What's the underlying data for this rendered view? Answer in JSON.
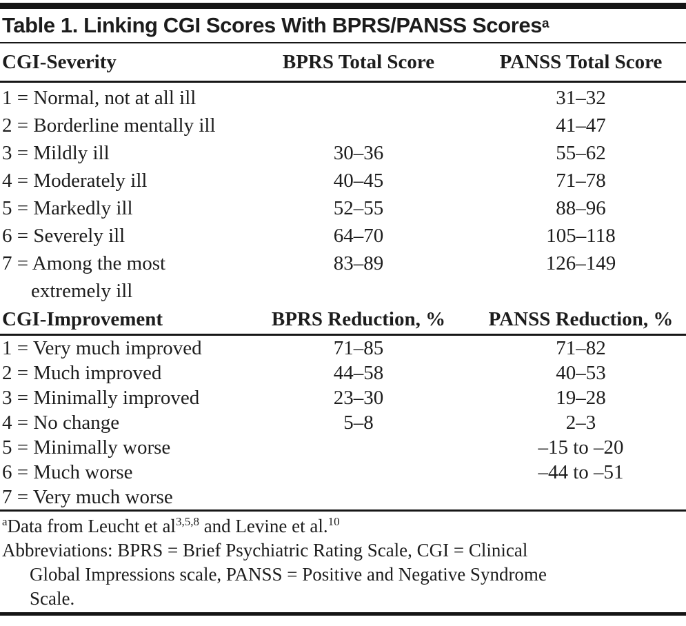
{
  "title": {
    "text": "Table 1. Linking CGI Scores With BPRS/PANSS Scores",
    "superscript": "a"
  },
  "severity_section": {
    "columns": [
      "CGI-Severity",
      "BPRS Total Score",
      "PANSS Total Score"
    ],
    "rows": [
      {
        "label": "1 = Normal, not at all ill",
        "bprs": "",
        "panss": "31–32"
      },
      {
        "label": "2 = Borderline mentally ill",
        "bprs": "",
        "panss": "41–47"
      },
      {
        "label": "3 = Mildly ill",
        "bprs": "30–36",
        "panss": "55–62"
      },
      {
        "label": "4 = Moderately ill",
        "bprs": "40–45",
        "panss": "71–78"
      },
      {
        "label": "5 = Markedly ill",
        "bprs": "52–55",
        "panss": "88–96"
      },
      {
        "label": "6 = Severely ill",
        "bprs": "64–70",
        "panss": "105–118"
      },
      {
        "label": "7 = Among the most",
        "label_line2": "extremely ill",
        "bprs": "83–89",
        "panss": "126–149"
      }
    ]
  },
  "improvement_section": {
    "columns": [
      "CGI-Improvement",
      "BPRS Reduction, %",
      "PANSS Reduction, %"
    ],
    "rows": [
      {
        "label": "1 = Very much improved",
        "bprs": "71–85",
        "panss": "71–82"
      },
      {
        "label": "2 = Much improved",
        "bprs": "44–58",
        "panss": "40–53"
      },
      {
        "label": "3 = Minimally improved",
        "bprs": "23–30",
        "panss": "19–28"
      },
      {
        "label": "4 = No change",
        "bprs": "5–8",
        "panss": "2–3"
      },
      {
        "label": "5 = Minimally worse",
        "bprs": "",
        "panss": "–15 to –20"
      },
      {
        "label": "6 = Much worse",
        "bprs": "",
        "panss": "–44 to –51"
      },
      {
        "label": "7 = Very much worse",
        "bprs": "",
        "panss": ""
      }
    ]
  },
  "footnotes": {
    "data_source": {
      "marker": "a",
      "text1": "Data from Leucht et al",
      "sup1": "3,5,8",
      "text2": " and Levine et al.",
      "sup2": "10"
    },
    "abbreviations_lines": [
      "Abbreviations: BPRS = Brief Psychiatric Rating Scale, CGI = Clinical",
      "Global Impressions scale, PANSS = Positive and Negative Syndrome",
      "Scale."
    ]
  },
  "colors": {
    "text": "#1d1d1d",
    "rule": "#161616",
    "background": "#ffffff"
  }
}
